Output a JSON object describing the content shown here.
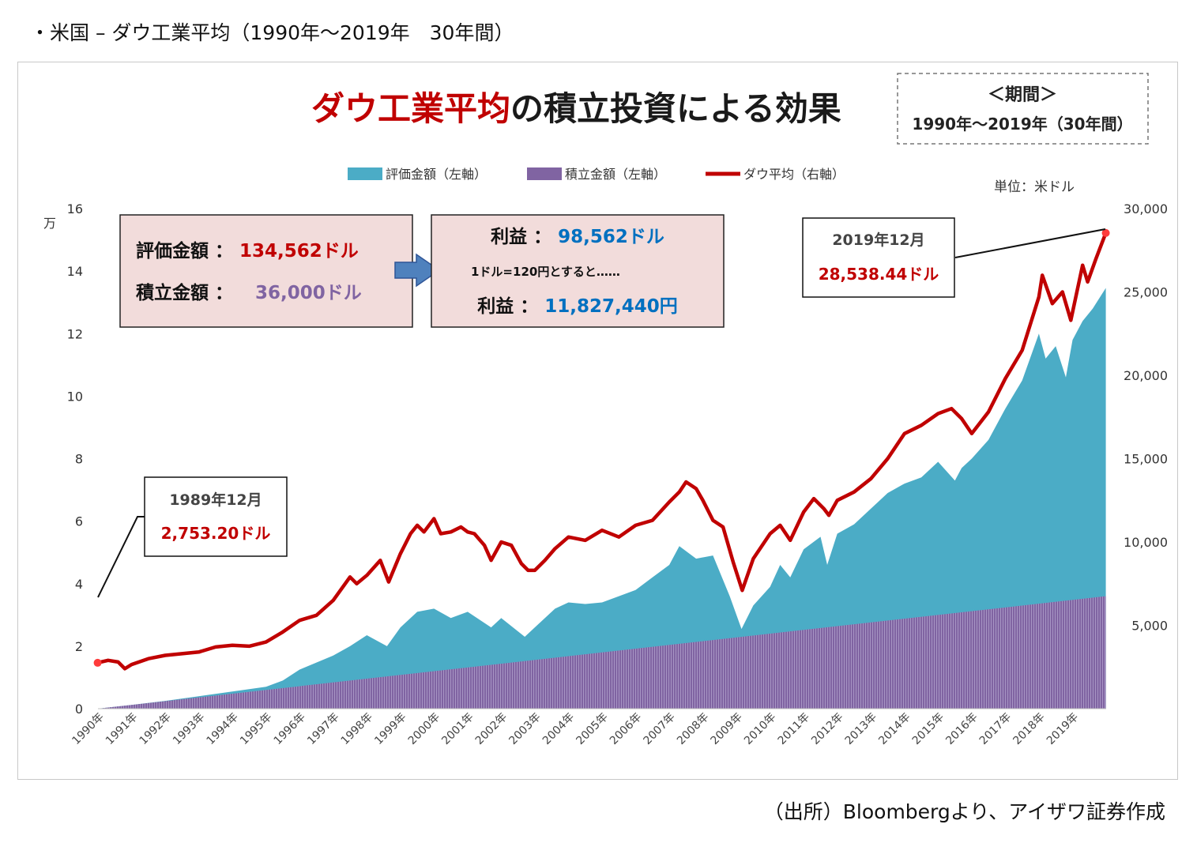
{
  "page": {
    "heading": "・米国 – ダウ工業平均（1990年～2019年　30年間）",
    "source": "（出所）Bloombergより、アイザワ証券作成"
  },
  "colors": {
    "valuation": "#4bacc6",
    "contribution": "#8064a2",
    "dow": "#c00000",
    "title_red": "#c00000",
    "title_dark": "#1a1a1a",
    "info_box_bg": "#f2dcdb",
    "blue_value": "#0070c0",
    "purple_value": "#8064a2",
    "arrow": "#4f81bd"
  },
  "chart_data": {
    "type": "area",
    "title_part1": "ダウ工業平均",
    "title_part2": "の積立投資による効果",
    "period_box": {
      "line1": "＜期間＞",
      "line2": "1990年～2019年（30年間）"
    },
    "unit": "単位：米ドル",
    "left_axis": {
      "unit_label": "万",
      "min": 0,
      "max": 16,
      "ticks": [
        "0",
        "2",
        "4",
        "6",
        "8",
        "10",
        "12",
        "14",
        "16"
      ]
    },
    "right_axis": {
      "min": 0,
      "max": 30000,
      "ticks": [
        "5,000",
        "10,000",
        "15,000",
        "20,000",
        "25,000",
        "30,000"
      ]
    },
    "x_ticks": [
      "1990年",
      "1991年",
      "1992年",
      "1993年",
      "1994年",
      "1995年",
      "1996年",
      "1997年",
      "1998年",
      "1999年",
      "2000年",
      "2001年",
      "2002年",
      "2003年",
      "2004年",
      "2005年",
      "2006年",
      "2007年",
      "2008年",
      "2009年",
      "2010年",
      "2011年",
      "2012年",
      "2013年",
      "2014年",
      "2015年",
      "2016年",
      "2017年",
      "2018年",
      "2019年"
    ],
    "legend": [
      "評価金額（左軸）",
      "積立金額（左軸）",
      "ダウ平均（右軸）"
    ],
    "series": [
      {
        "name": "評価金額（左軸）",
        "axis": "left",
        "unit": "万ドル",
        "x": [
          1990,
          1991,
          1992,
          1993,
          1994,
          1995,
          1995.5,
          1996,
          1997,
          1997.5,
          1998,
          1998.6,
          1999,
          1999.5,
          2000,
          2000.5,
          2001,
          2001.7,
          2002,
          2002.7,
          2003,
          2003.6,
          2004,
          2004.5,
          2005,
          2005.5,
          2006,
          2006.5,
          2007,
          2007.3,
          2007.8,
          2008.3,
          2008.8,
          2009.15,
          2009.5,
          2010,
          2010.3,
          2010.6,
          2011,
          2011.5,
          2011.7,
          2012,
          2012.5,
          2013,
          2013.5,
          2014,
          2014.5,
          2015,
          2015.5,
          2015.7,
          2016,
          2016.5,
          2017,
          2017.5,
          2018,
          2018.2,
          2018.5,
          2018.8,
          2019,
          2019.3,
          2019.6,
          2019.99
        ],
        "values": [
          0,
          0.12,
          0.25,
          0.4,
          0.55,
          0.7,
          0.9,
          1.25,
          1.7,
          2.0,
          2.35,
          2.0,
          2.6,
          3.1,
          3.2,
          2.9,
          3.1,
          2.6,
          2.9,
          2.3,
          2.6,
          3.2,
          3.4,
          3.35,
          3.4,
          3.6,
          3.8,
          4.2,
          4.6,
          5.2,
          4.8,
          4.9,
          3.6,
          2.55,
          3.3,
          3.9,
          4.6,
          4.2,
          5.1,
          5.5,
          4.6,
          5.6,
          5.9,
          6.4,
          6.9,
          7.2,
          7.4,
          7.9,
          7.3,
          7.7,
          8.0,
          8.6,
          9.6,
          10.5,
          12.0,
          11.2,
          11.6,
          10.6,
          11.8,
          12.4,
          12.8,
          13.46
        ]
      },
      {
        "name": "積立金額（左軸）",
        "axis": "left",
        "unit": "万ドル",
        "x": [
          1990,
          2019.99
        ],
        "values": [
          0,
          3.6
        ]
      },
      {
        "name": "ダウ平均（右軸）",
        "axis": "right",
        "unit": "米ドル",
        "x": [
          1989.99,
          1990.3,
          1990.6,
          1990.8,
          1991,
          1991.5,
          1992,
          1992.5,
          1993,
          1993.5,
          1994,
          1994.5,
          1995,
          1995.5,
          1996,
          1996.5,
          1997,
          1997.5,
          1997.7,
          1998,
          1998.4,
          1998.65,
          1999,
          1999.3,
          1999.5,
          1999.7,
          2000,
          2000.2,
          2000.5,
          2000.8,
          2001,
          2001.2,
          2001.5,
          2001.7,
          2002,
          2002.3,
          2002.6,
          2002.8,
          2003,
          2003.3,
          2003.6,
          2004,
          2004.5,
          2005,
          2005.5,
          2006,
          2006.5,
          2007,
          2007.3,
          2007.5,
          2007.8,
          2008,
          2008.3,
          2008.6,
          2008.9,
          2009.17,
          2009.5,
          2010,
          2010.3,
          2010.6,
          2011,
          2011.3,
          2011.6,
          2011.75,
          2012,
          2012.5,
          2013,
          2013.5,
          2014,
          2014.5,
          2015,
          2015.4,
          2015.7,
          2016,
          2016.5,
          2017,
          2017.5,
          2018,
          2018.1,
          2018.4,
          2018.7,
          2018.95,
          2019.3,
          2019.45,
          2019.7,
          2019.99
        ],
        "values": [
          2753,
          2900,
          2800,
          2400,
          2650,
          3000,
          3200,
          3300,
          3400,
          3700,
          3800,
          3750,
          4000,
          4600,
          5300,
          5600,
          6500,
          7900,
          7500,
          8000,
          8900,
          7600,
          9300,
          10500,
          11000,
          10600,
          11400,
          10500,
          10600,
          10900,
          10600,
          10500,
          9800,
          8900,
          10000,
          9800,
          8700,
          8300,
          8300,
          8900,
          9600,
          10300,
          10100,
          10700,
          10300,
          11000,
          11300,
          12400,
          13000,
          13600,
          13200,
          12500,
          11300,
          10900,
          8800,
          7100,
          9000,
          10500,
          11000,
          10100,
          11800,
          12600,
          12000,
          11600,
          12500,
          13000,
          13800,
          15000,
          16500,
          17000,
          17700,
          18000,
          17400,
          16500,
          17800,
          19800,
          21500,
          24700,
          26000,
          24300,
          25000,
          23300,
          26600,
          25600,
          27000,
          28538
        ]
      }
    ],
    "annotations": {
      "start": {
        "label": "1989年12月",
        "value": "2,753.20ドル"
      },
      "end": {
        "label": "2019年12月",
        "value": "28,538.44ドル"
      }
    },
    "info_box1": {
      "line1_label": "評価金額 ： ",
      "line1_value": "134,562ドル",
      "line2_label": "積立金額 ： ",
      "line2_value": "36,000ドル"
    },
    "info_box2": {
      "line1_label": "利益 ： ",
      "line1_value": "98,562ドル",
      "note": "1ドル=120円とすると……",
      "line2_label": "利益 ： ",
      "line2_value": "11,827,440円"
    }
  }
}
